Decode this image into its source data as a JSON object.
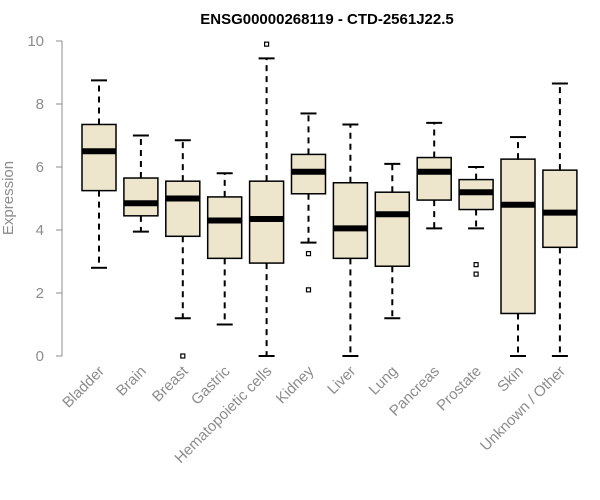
{
  "chart_data": {
    "type": "box",
    "title": "ENSG00000268119 - CTD-2561J22.5",
    "ylabel": "Expression",
    "ylim": [
      0,
      10
    ],
    "yticks": [
      0,
      2,
      4,
      6,
      8,
      10
    ],
    "box_color": "#ede6cc",
    "categories": [
      "Bladder",
      "Brain",
      "Breast",
      "Gastric",
      "Hematopoietic cells",
      "Kidney",
      "Liver",
      "Lung",
      "Pancreas",
      "Prostate",
      "Skin",
      "Unknown / Other"
    ],
    "boxes": [
      {
        "min": 2.8,
        "q1": 5.25,
        "median": 6.5,
        "q3": 7.35,
        "max": 8.75,
        "outliers": []
      },
      {
        "min": 3.95,
        "q1": 4.45,
        "median": 4.85,
        "q3": 5.65,
        "max": 7.0,
        "outliers": []
      },
      {
        "min": 1.2,
        "q1": 3.8,
        "median": 5.0,
        "q3": 5.55,
        "max": 6.85,
        "outliers": [
          0.0
        ]
      },
      {
        "min": 1.0,
        "q1": 3.1,
        "median": 4.3,
        "q3": 5.05,
        "max": 5.8,
        "outliers": []
      },
      {
        "min": 0.0,
        "q1": 2.95,
        "median": 4.35,
        "q3": 5.55,
        "max": 9.45,
        "outliers": [
          9.9
        ]
      },
      {
        "min": 3.6,
        "q1": 5.15,
        "median": 5.85,
        "q3": 6.4,
        "max": 7.7,
        "outliers": [
          3.25,
          2.1
        ]
      },
      {
        "min": 0.0,
        "q1": 3.1,
        "median": 4.05,
        "q3": 5.5,
        "max": 7.35,
        "outliers": []
      },
      {
        "min": 1.2,
        "q1": 2.85,
        "median": 4.5,
        "q3": 5.2,
        "max": 6.1,
        "outliers": []
      },
      {
        "min": 4.05,
        "q1": 4.95,
        "median": 5.85,
        "q3": 6.3,
        "max": 7.4,
        "outliers": []
      },
      {
        "min": 4.05,
        "q1": 4.65,
        "median": 5.2,
        "q3": 5.6,
        "max": 6.0,
        "outliers": [
          2.9,
          2.6
        ]
      },
      {
        "min": 0.0,
        "q1": 1.35,
        "median": 4.8,
        "q3": 6.25,
        "max": 6.95,
        "outliers": []
      },
      {
        "min": 0.0,
        "q1": 3.45,
        "median": 4.55,
        "q3": 5.9,
        "max": 8.65,
        "outliers": []
      }
    ]
  }
}
